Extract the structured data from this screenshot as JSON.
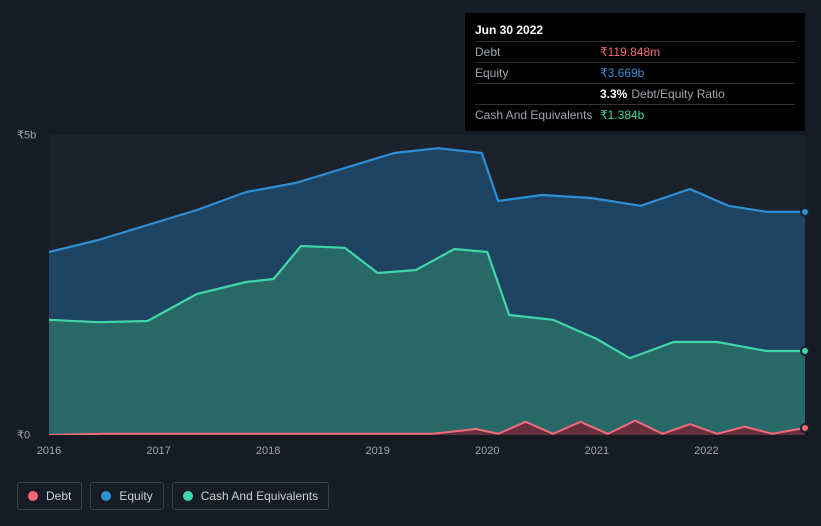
{
  "tooltip": {
    "date": "Jun 30 2022",
    "rows": [
      {
        "label": "Debt",
        "value": "₹119.848m",
        "color": "#f36a7b"
      },
      {
        "label": "Equity",
        "value": "₹3.669b",
        "color": "#2f8fd6"
      },
      {
        "label": "",
        "value": "3.3%",
        "ratio_label": "Debt/Equity Ratio",
        "color": "#ffffff"
      },
      {
        "label": "Cash And Equivalents",
        "value": "₹1.384b",
        "color": "#41d6a9"
      }
    ]
  },
  "chart": {
    "type": "area",
    "background_color": "#1b222c",
    "page_background": "#161b24",
    "x_years": [
      "2016",
      "2017",
      "2018",
      "2019",
      "2020",
      "2021",
      "2022"
    ],
    "y_ticks": [
      {
        "label": "₹5b",
        "value": 5
      },
      {
        "label": "₹0",
        "value": 0
      }
    ],
    "ylim": [
      0,
      5
    ],
    "series": [
      {
        "name": "Equity",
        "stroke": "#2f8fd6",
        "fill": "#1f4a6b",
        "fill_opacity": 0.85,
        "line_width": 2.2,
        "data": [
          {
            "x": 0.0,
            "y": 3.05
          },
          {
            "x": 0.45,
            "y": 3.25
          },
          {
            "x": 0.9,
            "y": 3.5
          },
          {
            "x": 1.35,
            "y": 3.75
          },
          {
            "x": 1.8,
            "y": 4.05
          },
          {
            "x": 2.25,
            "y": 4.2
          },
          {
            "x": 2.7,
            "y": 4.45
          },
          {
            "x": 3.15,
            "y": 4.7
          },
          {
            "x": 3.55,
            "y": 4.78
          },
          {
            "x": 3.95,
            "y": 4.7
          },
          {
            "x": 4.1,
            "y": 3.9
          },
          {
            "x": 4.5,
            "y": 4.0
          },
          {
            "x": 4.95,
            "y": 3.95
          },
          {
            "x": 5.4,
            "y": 3.82
          },
          {
            "x": 5.85,
            "y": 4.1
          },
          {
            "x": 6.2,
            "y": 3.82
          },
          {
            "x": 6.55,
            "y": 3.72
          },
          {
            "x": 6.9,
            "y": 3.72
          }
        ]
      },
      {
        "name": "Cash And Equivalents",
        "stroke": "#41d6a9",
        "fill": "#2a6f68",
        "fill_opacity": 0.85,
        "line_width": 2.2,
        "data": [
          {
            "x": 0.0,
            "y": 1.92
          },
          {
            "x": 0.45,
            "y": 1.88
          },
          {
            "x": 0.9,
            "y": 1.9
          },
          {
            "x": 1.35,
            "y": 2.35
          },
          {
            "x": 1.8,
            "y": 2.55
          },
          {
            "x": 2.05,
            "y": 2.6
          },
          {
            "x": 2.3,
            "y": 3.15
          },
          {
            "x": 2.7,
            "y": 3.12
          },
          {
            "x": 3.0,
            "y": 2.7
          },
          {
            "x": 3.35,
            "y": 2.75
          },
          {
            "x": 3.7,
            "y": 3.1
          },
          {
            "x": 4.0,
            "y": 3.05
          },
          {
            "x": 4.2,
            "y": 2.0
          },
          {
            "x": 4.6,
            "y": 1.92
          },
          {
            "x": 5.0,
            "y": 1.6
          },
          {
            "x": 5.3,
            "y": 1.28
          },
          {
            "x": 5.7,
            "y": 1.55
          },
          {
            "x": 6.1,
            "y": 1.55
          },
          {
            "x": 6.55,
            "y": 1.4
          },
          {
            "x": 6.9,
            "y": 1.4
          }
        ]
      },
      {
        "name": "Debt",
        "stroke": "#f36a7b",
        "fill": "#6b2a39",
        "fill_opacity": 0.9,
        "line_width": 2.0,
        "data": [
          {
            "x": 0.0,
            "y": 0.0
          },
          {
            "x": 0.5,
            "y": 0.02
          },
          {
            "x": 1.0,
            "y": 0.02
          },
          {
            "x": 1.5,
            "y": 0.02
          },
          {
            "x": 2.0,
            "y": 0.02
          },
          {
            "x": 2.5,
            "y": 0.02
          },
          {
            "x": 3.0,
            "y": 0.02
          },
          {
            "x": 3.5,
            "y": 0.02
          },
          {
            "x": 3.9,
            "y": 0.1
          },
          {
            "x": 4.1,
            "y": 0.02
          },
          {
            "x": 4.35,
            "y": 0.22
          },
          {
            "x": 4.6,
            "y": 0.02
          },
          {
            "x": 4.85,
            "y": 0.22
          },
          {
            "x": 5.1,
            "y": 0.02
          },
          {
            "x": 5.35,
            "y": 0.24
          },
          {
            "x": 5.6,
            "y": 0.02
          },
          {
            "x": 5.85,
            "y": 0.18
          },
          {
            "x": 6.1,
            "y": 0.02
          },
          {
            "x": 6.35,
            "y": 0.14
          },
          {
            "x": 6.6,
            "y": 0.02
          },
          {
            "x": 6.9,
            "y": 0.12
          }
        ]
      }
    ],
    "legend": [
      {
        "label": "Debt",
        "color": "#f36a7b"
      },
      {
        "label": "Equity",
        "color": "#2f8fd6"
      },
      {
        "label": "Cash And Equivalents",
        "color": "#41d6a9"
      }
    ]
  }
}
